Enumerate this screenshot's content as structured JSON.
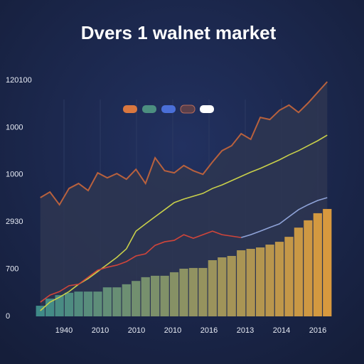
{
  "chart_data": {
    "type": "combo",
    "title": "Dvers 1 walnet market",
    "ylim": [
      0,
      100
    ],
    "y_axis_labels": [
      "120100",
      "1000",
      "1000",
      "2930",
      "700",
      "0"
    ],
    "x_axis_labels": [
      "1940",
      "2010",
      "2010",
      "2010",
      "2016",
      "2013",
      "2014",
      "2016"
    ],
    "legend_colors": [
      "#d9773f",
      "#4c8f80",
      "#4a6fd8",
      "#5a3f4a",
      "#ffffff"
    ],
    "series": [
      {
        "kind": "area",
        "color": "#b8613d",
        "values": [
          50.3,
          52.7,
          47.3,
          54.2,
          56.3,
          53.3,
          60.8,
          58.7,
          60.5,
          58.1,
          62.3,
          56.3,
          67.2,
          61.7,
          60.8,
          63.9,
          61.7,
          60.2,
          65.4,
          70.2,
          72.3,
          77.4,
          75,
          84.3,
          83.4,
          87.3,
          89.5,
          86.4,
          90.4,
          94.9,
          99.4
        ]
      },
      {
        "kind": "bar",
        "color": [
          "#3f8a88",
          "#d8993e"
        ],
        "values": [
          4.5,
          7.5,
          9,
          10,
          10.5,
          10.5,
          10.5,
          12.3,
          12.3,
          13.6,
          15,
          16.6,
          17.2,
          17.2,
          18.7,
          20.2,
          20.5,
          20.5,
          23.8,
          25,
          25.6,
          28,
          28.6,
          29.2,
          30.4,
          31.6,
          33.7,
          37.6,
          40.7,
          43.7,
          45.5
        ]
      },
      {
        "kind": "line",
        "color": "#c9d04a",
        "values": [
          2.4,
          6,
          8.1,
          10.5,
          13.6,
          16,
          19,
          22,
          25,
          28.6,
          36.1,
          39.2,
          42.2,
          45.2,
          48.2,
          49.7,
          50.9,
          52.1,
          54.2,
          55.7,
          57.5,
          59.3,
          61.1,
          62.7,
          64.5,
          66.3,
          68.4,
          70.2,
          72.3,
          74.4,
          76.8
        ]
      },
      {
        "kind": "line",
        "color": "#d0453a",
        "values": [
          6,
          9,
          10.5,
          13,
          13.6,
          16.6,
          19.6,
          20.8,
          21.7,
          23.2,
          25.6,
          26.5,
          30.1,
          31.6,
          32.2,
          34.6,
          33.1,
          34.6,
          36.1,
          34.6,
          34,
          33.4,
          null,
          null,
          null,
          null,
          null,
          null,
          null,
          null,
          null
        ]
      },
      {
        "kind": "line",
        "color": "#8fa3d8",
        "values": [
          null,
          null,
          null,
          null,
          null,
          null,
          null,
          null,
          null,
          null,
          null,
          null,
          null,
          null,
          null,
          null,
          null,
          null,
          null,
          null,
          null,
          33.4,
          34.6,
          36.1,
          37.7,
          39.2,
          42.2,
          45.2,
          47.3,
          49.1,
          50.3
        ]
      }
    ]
  }
}
